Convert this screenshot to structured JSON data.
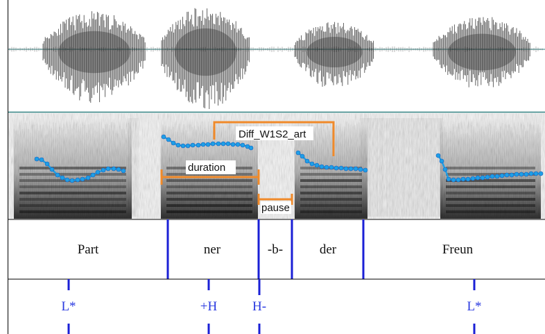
{
  "colors": {
    "waveform": "#333333",
    "baseline": "#2f7f7f",
    "pitch": "#1e9fe6",
    "pitch_stroke": "#1560c0",
    "bracket": "#f08a2a",
    "boundary": "#1a1fd6",
    "tone_text": "#2a3ae0"
  },
  "annotations": {
    "diff": "Diff_W1S2_art",
    "duration": "duration",
    "pause": "pause"
  },
  "syllables": [
    "Part",
    "ner",
    "-b-",
    "der",
    "Freun"
  ],
  "tones": [
    "L*",
    "+H",
    "H-",
    "L*"
  ]
}
